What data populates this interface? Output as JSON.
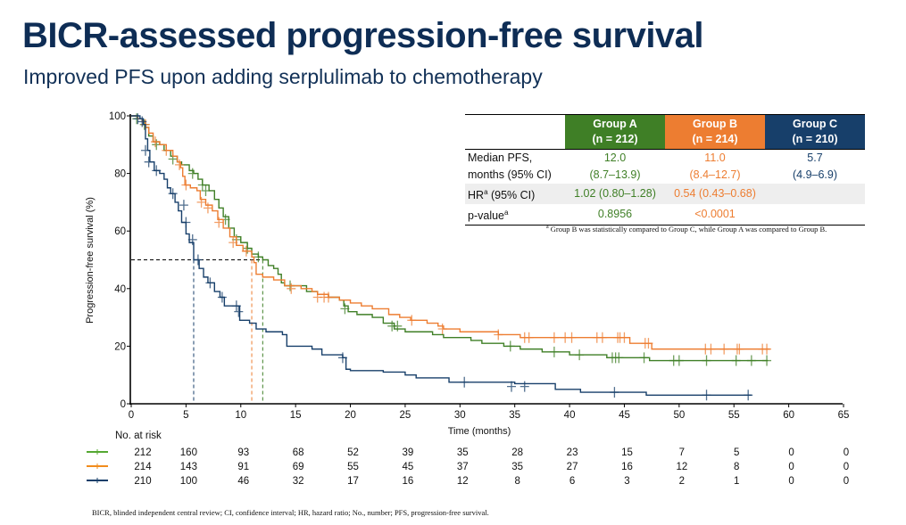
{
  "header": {
    "title": "BICR-assessed progression-free survival",
    "subtitle": "Improved PFS upon adding serplulimab to chemotherapy"
  },
  "stats_table": {
    "groups": [
      {
        "name": "Group A",
        "n": "(n = 212)",
        "color": "#3f7f26",
        "median": "12.0",
        "median_ci": "(8.7–13.9)",
        "hr": "1.02 (0.80–1.28)",
        "p": "0.8956"
      },
      {
        "name": "Group B",
        "n": "(n = 214)",
        "color": "#ed7d31",
        "median": "11.0",
        "median_ci": "(8.4–12.7)",
        "hr": "0.54 (0.43–0.68)",
        "p": "<0.0001"
      },
      {
        "name": "Group C",
        "n": "(n = 210)",
        "color": "#173f6a",
        "median": "5.7",
        "median_ci": "(4.9–6.9)",
        "hr": "",
        "p": ""
      }
    ],
    "row_labels": {
      "median_line1": "Median PFS,",
      "median_line2": "months (95% CI)",
      "hr": "HR",
      "hr_sup": "a",
      "hr_rest": " (95% CI)",
      "p": "p-value",
      "p_sup": "a"
    },
    "footnote_marker": "a",
    "footnote": "Group B was statistically compared to Group C, while Group A was compared to Group B."
  },
  "risk_table": {
    "title": "No. at risk",
    "times": [
      0,
      5,
      10,
      15,
      20,
      25,
      30,
      35,
      40,
      45,
      50,
      55,
      60,
      65
    ],
    "rows": [
      {
        "group": "Group A",
        "color": "#55a832",
        "values": [
          212,
          160,
          93,
          68,
          52,
          39,
          35,
          28,
          23,
          15,
          7,
          5,
          0,
          0
        ]
      },
      {
        "group": "Group B",
        "color": "#f28c1c",
        "values": [
          214,
          143,
          91,
          69,
          55,
          45,
          37,
          35,
          27,
          16,
          12,
          8,
          0,
          0
        ]
      },
      {
        "group": "Group C",
        "color": "#173f6a",
        "values": [
          210,
          100,
          46,
          32,
          17,
          16,
          12,
          8,
          6,
          3,
          2,
          1,
          0,
          0
        ]
      }
    ]
  },
  "footer": "BICR, blinded independent central review;  CI, confidence interval; HR, hazard ratio; No., number; PFS, progression-free survival.",
  "chart_data": {
    "type": "line",
    "subtype": "kaplan-meier",
    "title": "",
    "xlabel": "Time (months)",
    "ylabel": "Progression-free survival (%)",
    "xlim": [
      0,
      65
    ],
    "ylim": [
      0,
      100
    ],
    "xticks": [
      0,
      5,
      10,
      15,
      20,
      25,
      30,
      35,
      40,
      45,
      50,
      55,
      60,
      65
    ],
    "yticks": [
      0,
      20,
      40,
      60,
      80,
      100
    ],
    "grid": false,
    "median_reference": {
      "y": 50,
      "medians": [
        {
          "group": "Group A",
          "x": 12.0
        },
        {
          "group": "Group B",
          "x": 11.0
        },
        {
          "group": "Group C",
          "x": 5.7
        }
      ]
    },
    "series": [
      {
        "name": "Group A",
        "color": "#3f7f26",
        "steps": [
          [
            0,
            100
          ],
          [
            0.6,
            99
          ],
          [
            1.0,
            98
          ],
          [
            1.3,
            96
          ],
          [
            1.6,
            93
          ],
          [
            2.0,
            91
          ],
          [
            2.6,
            90
          ],
          [
            3.0,
            88
          ],
          [
            3.6,
            86
          ],
          [
            4.2,
            84
          ],
          [
            4.6,
            83
          ],
          [
            5.3,
            81
          ],
          [
            5.7,
            80
          ],
          [
            6.1,
            78
          ],
          [
            6.5,
            76
          ],
          [
            7.1,
            74
          ],
          [
            7.6,
            71
          ],
          [
            8.0,
            68
          ],
          [
            8.4,
            65
          ],
          [
            8.9,
            61
          ],
          [
            9.4,
            58
          ],
          [
            10.0,
            56
          ],
          [
            10.6,
            54
          ],
          [
            11.0,
            52
          ],
          [
            11.6,
            51
          ],
          [
            12.0,
            50
          ],
          [
            12.5,
            48
          ],
          [
            13.0,
            47
          ],
          [
            13.4,
            45
          ],
          [
            13.7,
            42
          ],
          [
            14.0,
            41
          ],
          [
            15.0,
            41
          ],
          [
            16.0,
            39
          ],
          [
            17.0,
            38
          ],
          [
            18.0,
            37
          ],
          [
            19.0,
            36
          ],
          [
            19.4,
            34
          ],
          [
            19.8,
            32
          ],
          [
            20.6,
            31
          ],
          [
            22.0,
            30
          ],
          [
            23.0,
            28
          ],
          [
            24.0,
            26
          ],
          [
            25.0,
            25
          ],
          [
            26.0,
            25
          ],
          [
            27.5,
            24
          ],
          [
            28.5,
            23
          ],
          [
            30.0,
            23
          ],
          [
            31.0,
            22
          ],
          [
            32.0,
            21
          ],
          [
            34.0,
            20
          ],
          [
            35.5,
            19
          ],
          [
            37.5,
            18
          ],
          [
            40.0,
            17
          ],
          [
            43.4,
            16
          ],
          [
            47.0,
            16
          ],
          [
            47.3,
            15
          ],
          [
            58.1,
            15
          ]
        ],
        "censors": [
          [
            0.5,
            99
          ],
          [
            1.2,
            97
          ],
          [
            2.3,
            90
          ],
          [
            3.8,
            85
          ],
          [
            5.6,
            80
          ],
          [
            6.5,
            76
          ],
          [
            6.8,
            74
          ],
          [
            8.6,
            64
          ],
          [
            9.6,
            57
          ],
          [
            10.6,
            54
          ],
          [
            11.6,
            51
          ],
          [
            14.5,
            41
          ],
          [
            19.5,
            33
          ],
          [
            23.8,
            27
          ],
          [
            24.3,
            27
          ],
          [
            34.6,
            20
          ],
          [
            38.6,
            18
          ],
          [
            40.9,
            17
          ],
          [
            43.9,
            16
          ],
          [
            44.2,
            16
          ],
          [
            44.5,
            16
          ],
          [
            46.8,
            16
          ],
          [
            49.5,
            15
          ],
          [
            50.0,
            15
          ],
          [
            52.5,
            15
          ],
          [
            55.2,
            15
          ],
          [
            56.6,
            15
          ],
          [
            58.0,
            15
          ]
        ]
      },
      {
        "name": "Group B",
        "color": "#ed7d31",
        "steps": [
          [
            0,
            100
          ],
          [
            0.6,
            99
          ],
          [
            1.0,
            98
          ],
          [
            1.3,
            96
          ],
          [
            1.6,
            94
          ],
          [
            2.0,
            91
          ],
          [
            2.6,
            90
          ],
          [
            3.2,
            88
          ],
          [
            3.8,
            86
          ],
          [
            4.2,
            84
          ],
          [
            4.5,
            82
          ],
          [
            4.7,
            79
          ],
          [
            4.9,
            76
          ],
          [
            5.4,
            75
          ],
          [
            6.0,
            74
          ],
          [
            6.3,
            71
          ],
          [
            6.8,
            69
          ],
          [
            7.4,
            67
          ],
          [
            7.9,
            64
          ],
          [
            8.4,
            61
          ],
          [
            9.0,
            58
          ],
          [
            9.6,
            55
          ],
          [
            10.2,
            53
          ],
          [
            11.0,
            51
          ],
          [
            11.2,
            49
          ],
          [
            11.4,
            45
          ],
          [
            12.0,
            44
          ],
          [
            13.0,
            43
          ],
          [
            14.0,
            41
          ],
          [
            15.5,
            40
          ],
          [
            16.5,
            39
          ],
          [
            17.0,
            38
          ],
          [
            18.0,
            37
          ],
          [
            19.0,
            36
          ],
          [
            20.0,
            35
          ],
          [
            21.0,
            34
          ],
          [
            22.0,
            33
          ],
          [
            23.5,
            31
          ],
          [
            24.5,
            30
          ],
          [
            25.5,
            29
          ],
          [
            27.0,
            28
          ],
          [
            28.0,
            27
          ],
          [
            28.5,
            26
          ],
          [
            30.0,
            25
          ],
          [
            33.5,
            24
          ],
          [
            35.5,
            23
          ],
          [
            45.5,
            21
          ],
          [
            47.5,
            19
          ],
          [
            58.3,
            19
          ]
        ],
        "censors": [
          [
            1.3,
            97
          ],
          [
            2.2,
            91
          ],
          [
            3.2,
            88
          ],
          [
            4.4,
            83
          ],
          [
            5.0,
            76
          ],
          [
            6.4,
            70
          ],
          [
            7.0,
            68
          ],
          [
            8.0,
            63
          ],
          [
            9.3,
            56
          ],
          [
            10.5,
            53
          ],
          [
            14.6,
            40
          ],
          [
            17.0,
            37
          ],
          [
            17.6,
            37
          ],
          [
            18.0,
            37
          ],
          [
            25.6,
            29
          ],
          [
            28.4,
            26
          ],
          [
            33.5,
            24
          ],
          [
            35.9,
            23
          ],
          [
            36.3,
            23
          ],
          [
            38.6,
            23
          ],
          [
            39.6,
            23
          ],
          [
            40.2,
            23
          ],
          [
            42.5,
            23
          ],
          [
            43.0,
            23
          ],
          [
            44.4,
            23
          ],
          [
            44.6,
            23
          ],
          [
            45.0,
            23
          ],
          [
            46.9,
            21
          ],
          [
            47.2,
            21
          ],
          [
            52.4,
            19
          ],
          [
            52.9,
            19
          ],
          [
            54.1,
            19
          ],
          [
            55.3,
            19
          ],
          [
            55.5,
            19
          ],
          [
            57.6,
            19
          ],
          [
            58.0,
            19
          ]
        ]
      },
      {
        "name": "Group C",
        "color": "#173f6a",
        "steps": [
          [
            0,
            100
          ],
          [
            0.8,
            99
          ],
          [
            1.1,
            97
          ],
          [
            1.3,
            92
          ],
          [
            1.5,
            88
          ],
          [
            1.7,
            84
          ],
          [
            2.1,
            81
          ],
          [
            2.6,
            80
          ],
          [
            3.0,
            78
          ],
          [
            3.3,
            75
          ],
          [
            3.6,
            73
          ],
          [
            4.0,
            70
          ],
          [
            4.3,
            67
          ],
          [
            4.6,
            63
          ],
          [
            5.0,
            59
          ],
          [
            5.3,
            56
          ],
          [
            5.7,
            50
          ],
          [
            6.2,
            47
          ],
          [
            6.6,
            44
          ],
          [
            7.0,
            42
          ],
          [
            7.6,
            39
          ],
          [
            8.1,
            37
          ],
          [
            8.5,
            34
          ],
          [
            9.5,
            34
          ],
          [
            9.9,
            29
          ],
          [
            10.8,
            28
          ],
          [
            11.4,
            26
          ],
          [
            12.3,
            25
          ],
          [
            13.8,
            24
          ],
          [
            14.2,
            20
          ],
          [
            16.5,
            19
          ],
          [
            17.4,
            17
          ],
          [
            19.3,
            16
          ],
          [
            19.6,
            12
          ],
          [
            20.0,
            11.5
          ],
          [
            23.0,
            11
          ],
          [
            25.0,
            10
          ],
          [
            26.0,
            9
          ],
          [
            29.0,
            7.5
          ],
          [
            35.0,
            7
          ],
          [
            38.7,
            5
          ],
          [
            41.0,
            4
          ],
          [
            47.0,
            3
          ],
          [
            56.6,
            3
          ]
        ],
        "censors": [
          [
            0.6,
            99
          ],
          [
            1.0,
            98
          ],
          [
            1.3,
            88
          ],
          [
            1.6,
            84
          ],
          [
            2.3,
            81
          ],
          [
            3.8,
            73
          ],
          [
            4.8,
            69
          ],
          [
            5.0,
            63
          ],
          [
            5.6,
            57
          ],
          [
            6.1,
            50
          ],
          [
            7.2,
            42
          ],
          [
            8.3,
            37
          ],
          [
            9.6,
            34
          ],
          [
            9.8,
            32
          ],
          [
            19.3,
            16
          ],
          [
            30.4,
            7.5
          ],
          [
            34.7,
            6
          ],
          [
            35.9,
            6
          ],
          [
            44.1,
            4
          ],
          [
            52.5,
            3
          ],
          [
            56.3,
            3
          ]
        ]
      }
    ]
  }
}
